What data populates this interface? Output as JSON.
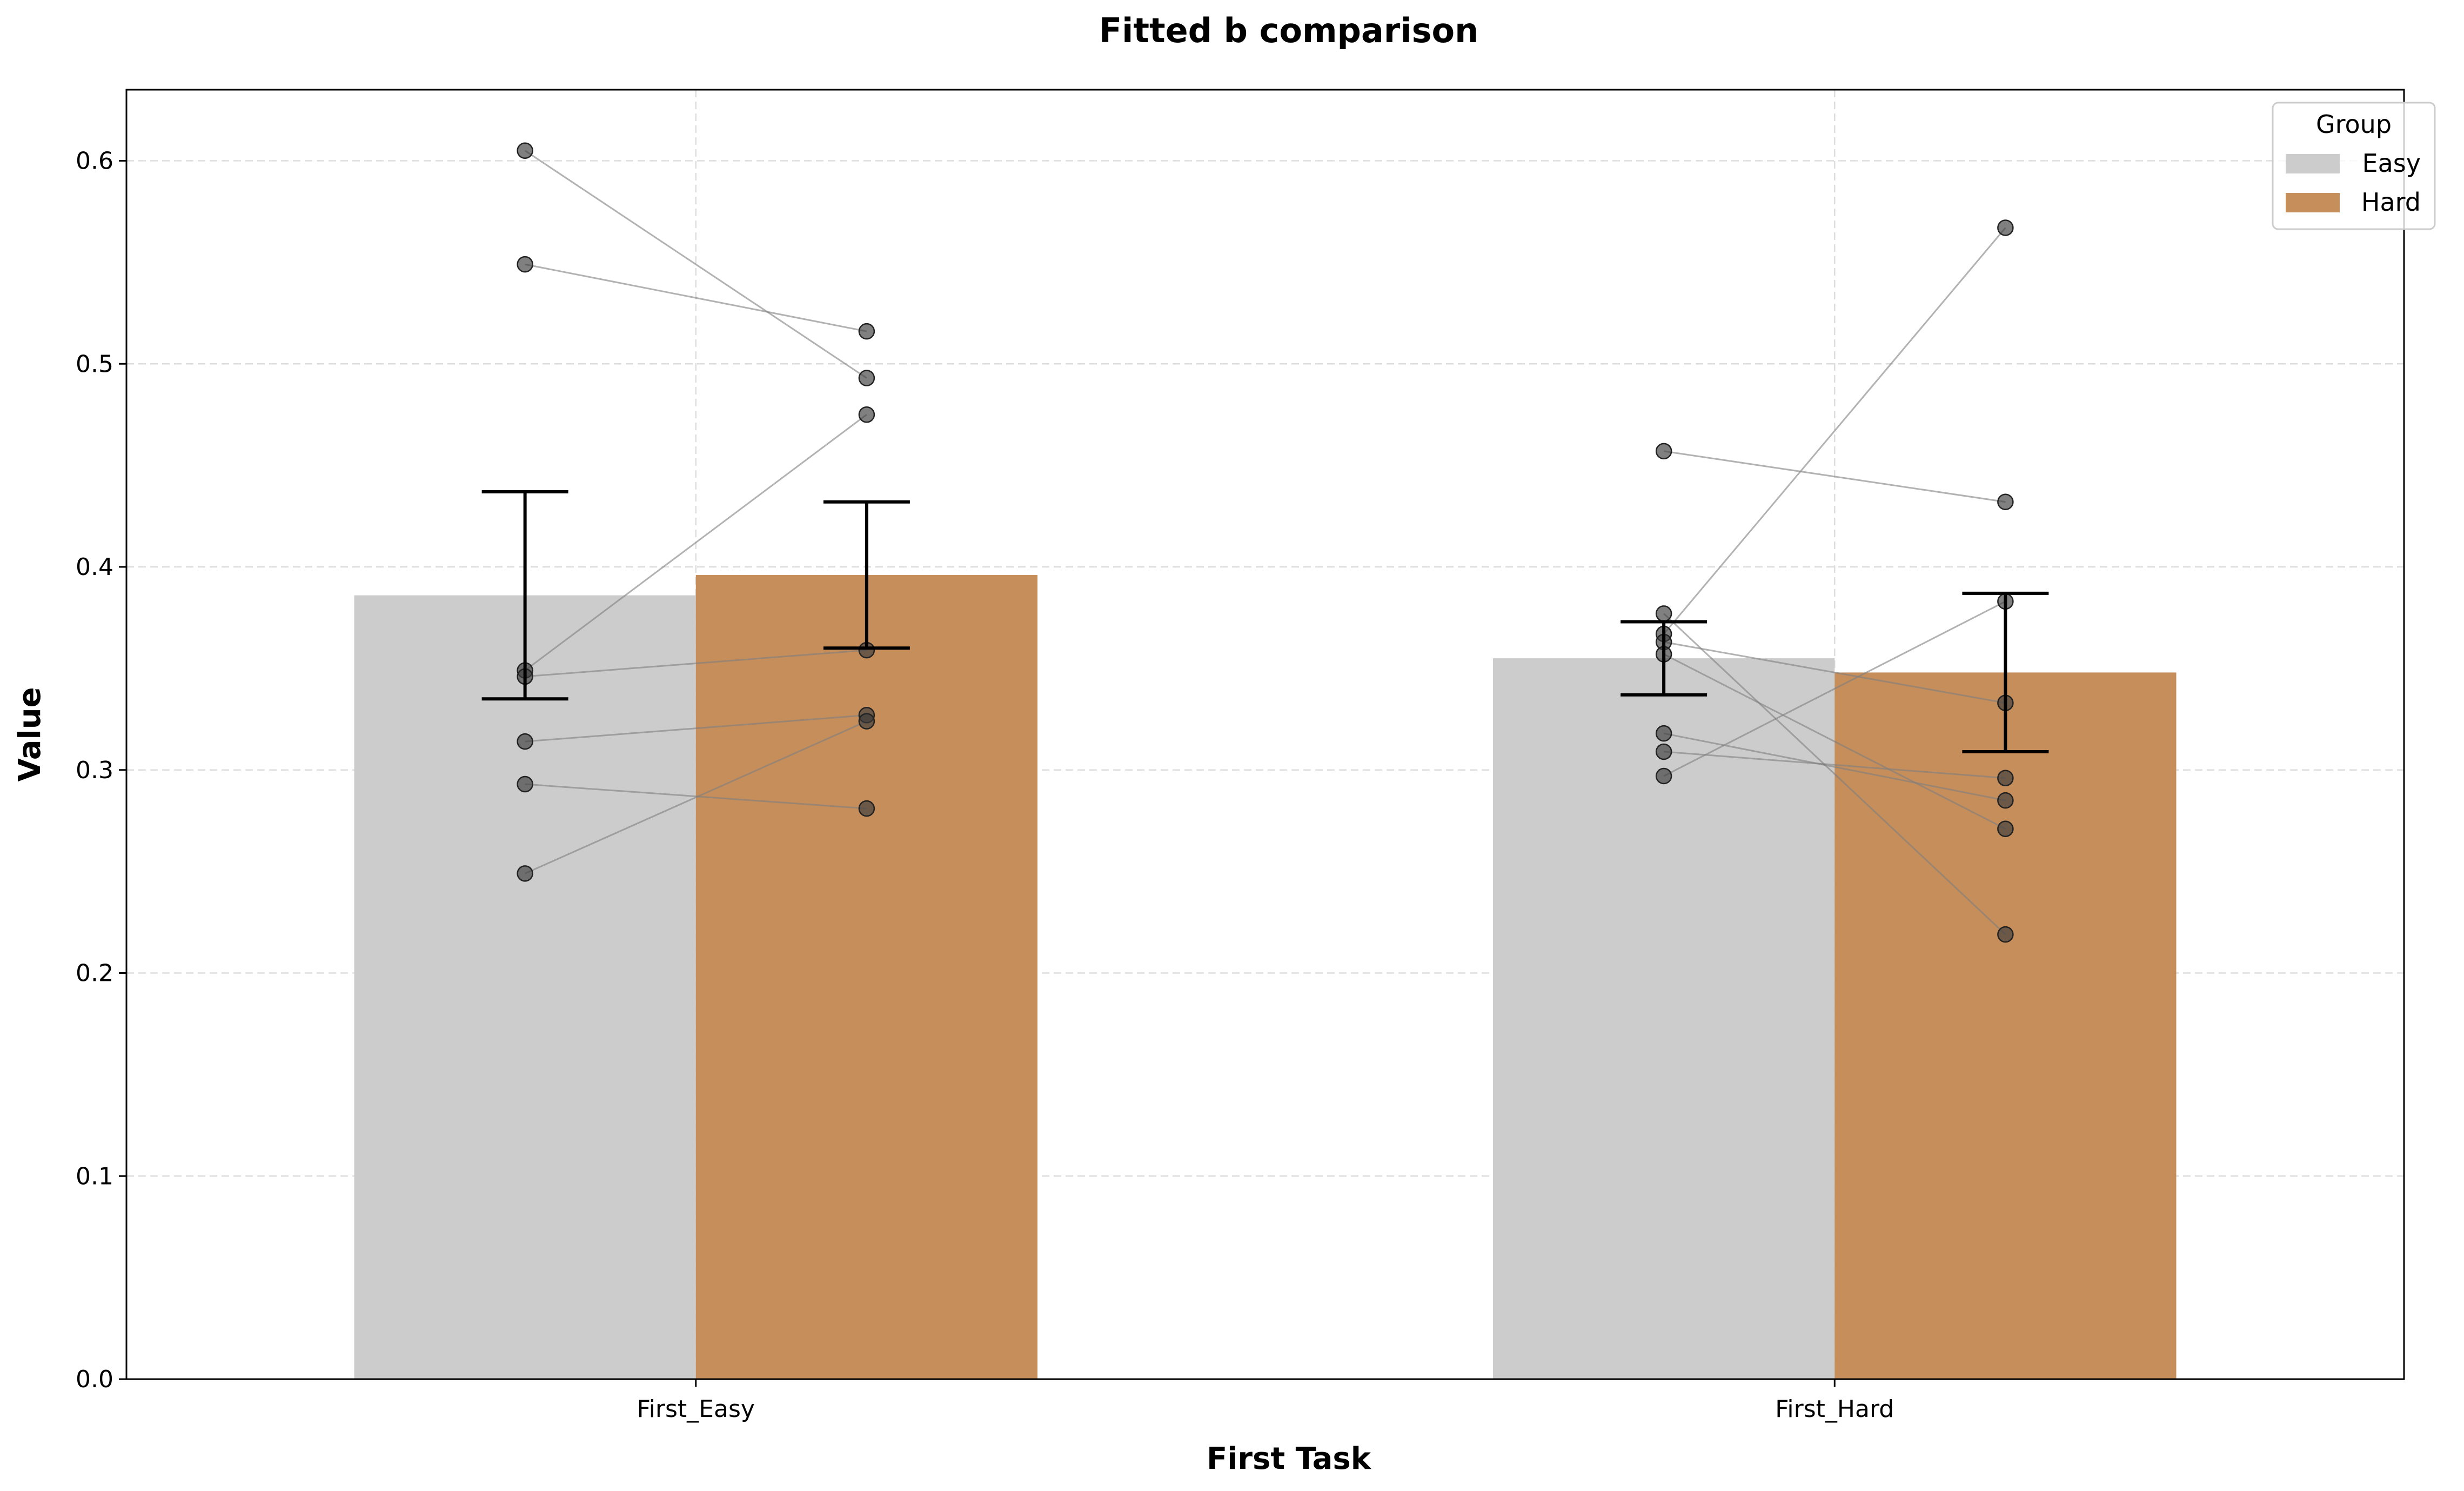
{
  "chart_data": {
    "type": "bar",
    "title": "Fitted b comparison",
    "xlabel": "First Task",
    "ylabel": "Value",
    "categories": [
      "First_Easy",
      "First_Hard"
    ],
    "ylim": [
      0,
      0.635
    ],
    "yticks": [
      0.0,
      0.1,
      0.2,
      0.3,
      0.4,
      0.5,
      0.6
    ],
    "ytick_labels": [
      "0.0",
      "0.1",
      "0.2",
      "0.3",
      "0.4",
      "0.5",
      "0.6"
    ],
    "grid": true,
    "legend": {
      "title": "Group",
      "placement": "top-right"
    },
    "series": [
      {
        "name": "Easy",
        "color": "#cccccc",
        "values": [
          0.386,
          0.355
        ],
        "error": [
          0.051,
          0.018
        ]
      },
      {
        "name": "Hard",
        "color": "#c68e5b",
        "values": [
          0.396,
          0.348
        ],
        "error": [
          0.036,
          0.039
        ]
      }
    ],
    "paired_points": [
      [
        [
          0.605,
          0.493
        ],
        [
          0.549,
          0.516
        ],
        [
          0.349,
          0.475
        ],
        [
          0.346,
          0.359
        ],
        [
          0.314,
          0.327
        ],
        [
          0.293,
          0.281
        ],
        [
          0.249,
          0.324
        ]
      ],
      [
        [
          0.457,
          0.432
        ],
        [
          0.377,
          0.219
        ],
        [
          0.367,
          0.567
        ],
        [
          0.363,
          0.333
        ],
        [
          0.357,
          0.271
        ],
        [
          0.318,
          0.285
        ],
        [
          0.309,
          0.296
        ],
        [
          0.297,
          0.383
        ]
      ]
    ]
  }
}
